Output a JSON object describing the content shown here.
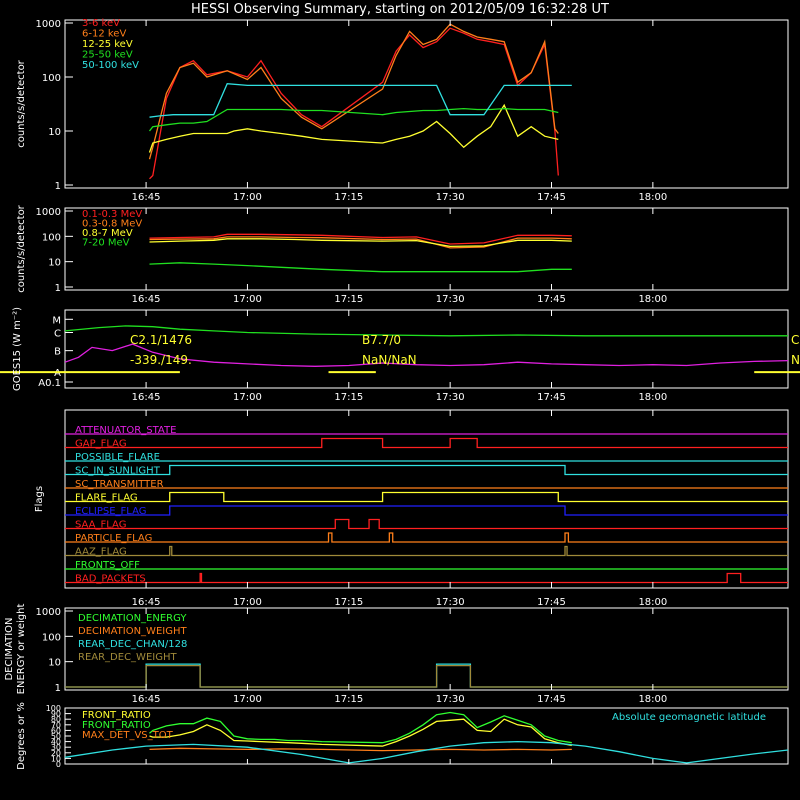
{
  "title": "HESSI Observing Summary, starting on 2012/05/09 16:32:28 UT",
  "time_ticks": [
    "16:45",
    "17:00",
    "17:15",
    "17:30",
    "17:45",
    "18:00"
  ],
  "time_tick_minutes": [
    45,
    60,
    75,
    90,
    105,
    120
  ],
  "time_range_minutes": [
    33,
    140
  ],
  "colors": {
    "red": "#ff2020",
    "orange": "#ff7f1a",
    "yellow": "#ffff30",
    "green": "#20e020",
    "cyan": "#30e0e0",
    "magenta": "#e020e0",
    "blue": "#2020ff",
    "white": "#ffffff",
    "olive": "#a08a3a",
    "lime": "#30ff30"
  },
  "chart_data": [
    {
      "type": "line",
      "panel": "count-rates",
      "ylabel": "counts/s/detector",
      "yscale": "log",
      "ylim": [
        1,
        1000
      ],
      "yticks": [
        "1",
        "10",
        "100",
        "1000"
      ],
      "legend": [
        "3-6 keV",
        "6-12 keV",
        "12-25 keV",
        "25-50 keV",
        "50-100 keV"
      ],
      "series": [
        {
          "name": "3-6 keV",
          "color": "red",
          "x": [
            45.5,
            46,
            48,
            50,
            52,
            54,
            57,
            60,
            62,
            65,
            68,
            71,
            80,
            82,
            84,
            86,
            88,
            90,
            92,
            94,
            96,
            98,
            100,
            102,
            104,
            105.5,
            106
          ],
          "y": [
            1.3,
            1.5,
            40,
            150,
            200,
            110,
            130,
            100,
            200,
            50,
            20,
            12,
            80,
            300,
            600,
            350,
            450,
            800,
            650,
            500,
            450,
            400,
            70,
            120,
            400,
            10,
            1.5
          ]
        },
        {
          "name": "6-12 keV",
          "color": "orange",
          "x": [
            45.5,
            46,
            48,
            50,
            52,
            54,
            57,
            60,
            62,
            65,
            68,
            71,
            80,
            82,
            84,
            86,
            88,
            90,
            92,
            94,
            96,
            98,
            100,
            102,
            104,
            105.5,
            106
          ],
          "y": [
            3,
            5,
            50,
            150,
            180,
            100,
            130,
            90,
            150,
            40,
            18,
            11,
            60,
            250,
            700,
            400,
            500,
            950,
            700,
            550,
            500,
            450,
            80,
            120,
            450,
            11,
            9
          ]
        },
        {
          "name": "12-25 keV",
          "color": "yellow",
          "x": [
            45.5,
            46,
            48,
            50,
            52,
            54,
            57,
            58,
            60,
            62,
            65,
            68,
            71,
            80,
            82,
            84,
            86,
            88,
            90,
            92,
            94,
            96,
            98,
            100,
            102,
            104,
            106
          ],
          "y": [
            4,
            6,
            7,
            8,
            9,
            9,
            9,
            10,
            11,
            10,
            9,
            8,
            7,
            6,
            7,
            8,
            10,
            15,
            9,
            5,
            8,
            12,
            30,
            8,
            12,
            8,
            7
          ]
        },
        {
          "name": "25-50 keV",
          "color": "green",
          "x": [
            45.5,
            46,
            48,
            50,
            52,
            54,
            57,
            60,
            65,
            68,
            71,
            80,
            82,
            84,
            86,
            88,
            90,
            92,
            94,
            96,
            98,
            100,
            102,
            104,
            106
          ],
          "y": [
            10,
            12,
            13,
            14,
            14,
            15,
            25,
            25,
            25,
            24,
            24,
            20,
            22,
            23,
            24,
            24,
            25,
            26,
            25,
            25,
            26,
            25,
            25,
            25,
            22
          ]
        },
        {
          "name": "50-100 keV",
          "color": "cyan",
          "x": [
            45.5,
            47,
            49,
            52,
            55,
            57,
            60,
            65,
            68,
            71,
            80,
            82,
            85,
            88,
            90,
            93,
            95,
            98,
            100,
            103,
            106,
            108
          ],
          "y": [
            18,
            19,
            20,
            20,
            20,
            75,
            70,
            70,
            70,
            70,
            70,
            70,
            70,
            70,
            20,
            20,
            20,
            70,
            70,
            70,
            70,
            70
          ]
        }
      ]
    },
    {
      "type": "line",
      "panel": "high-energy",
      "ylabel": "counts/s/detector",
      "yscale": "log",
      "ylim": [
        1,
        1000
      ],
      "yticks": [
        "1",
        "10",
        "100",
        "1000"
      ],
      "legend": [
        "0.1-0.3 MeV",
        "0.3-0.8 MeV",
        "0.8-7 MeV",
        "7-20 MeV"
      ],
      "series": [
        {
          "name": "0.1-0.3 MeV",
          "color": "red",
          "x": [
            45.5,
            50,
            55,
            57,
            62,
            67,
            71,
            80,
            85,
            90,
            95,
            100,
            105,
            108
          ],
          "y": [
            85,
            90,
            95,
            120,
            120,
            115,
            110,
            90,
            95,
            50,
            55,
            110,
            110,
            105
          ]
        },
        {
          "name": "0.3-0.8 MeV",
          "color": "orange",
          "x": [
            45.5,
            50,
            55,
            57,
            62,
            67,
            71,
            80,
            85,
            90,
            95,
            100,
            105,
            108
          ],
          "y": [
            75,
            78,
            80,
            95,
            95,
            90,
            88,
            75,
            78,
            35,
            38,
            85,
            85,
            80
          ]
        },
        {
          "name": "0.8-7 MeV",
          "color": "yellow",
          "x": [
            45.5,
            50,
            55,
            57,
            62,
            67,
            71,
            80,
            85,
            90,
            95,
            100,
            105,
            108
          ],
          "y": [
            60,
            65,
            70,
            80,
            80,
            75,
            70,
            65,
            68,
            40,
            42,
            70,
            70,
            65
          ]
        },
        {
          "name": "7-20 MeV",
          "color": "green",
          "x": [
            45.5,
            50,
            55,
            60,
            65,
            71,
            80,
            85,
            90,
            95,
            100,
            105,
            108
          ],
          "y": [
            8,
            9,
            8,
            7,
            6,
            5,
            4,
            4,
            4,
            4,
            4,
            5,
            5
          ]
        }
      ]
    },
    {
      "type": "line",
      "panel": "goes",
      "ylabel": "GOES15 (W m⁻²)",
      "yticks": [
        "A0.1",
        "A",
        "B",
        "C",
        "M"
      ],
      "annotations": [
        "C2.1/1476",
        "-339./149.",
        "B7.7/0",
        "NaN/NaN",
        "C",
        "N"
      ],
      "series": [
        {
          "name": "long",
          "color": "green",
          "x": [
            33,
            38,
            42,
            46,
            50,
            55,
            60,
            70,
            80,
            90,
            100,
            110,
            120,
            130,
            140
          ],
          "y": [
            3.1,
            3.3,
            3.4,
            3.35,
            3.2,
            3.1,
            3.0,
            2.9,
            2.85,
            2.8,
            2.85,
            2.8,
            2.8,
            2.8,
            2.8
          ]
        },
        {
          "name": "short",
          "color": "magenta",
          "x": [
            33,
            35,
            37,
            40,
            43,
            46,
            50,
            55,
            60,
            65,
            70,
            75,
            80,
            85,
            90,
            95,
            100,
            105,
            110,
            115,
            120,
            125,
            130,
            135,
            140
          ],
          "y": [
            1.2,
            1.5,
            2.1,
            1.9,
            2.3,
            1.8,
            1.4,
            1.2,
            1.1,
            1.0,
            0.95,
            1.0,
            1.15,
            1.05,
            1.0,
            1.05,
            1.2,
            1.1,
            1.05,
            1.0,
            1.05,
            1.0,
            1.15,
            1.25,
            1.3
          ]
        }
      ]
    },
    {
      "type": "line",
      "panel": "flags",
      "ylabel": "Flags",
      "labels": [
        "ATTENUATOR_STATE",
        "GAP_FLAG",
        "POSSIBLE_FLARE",
        "SC_IN_SUNLIGHT",
        "SC_TRANSMITTER",
        "FLARE_FLAG",
        "ECLIPSE_FLAG",
        "SAA_FLAG",
        "PARTICLE_FLAG",
        "AAZ_FLAG",
        "FRONTS_OFF",
        "BAD_PACKETS"
      ],
      "colors": [
        "magenta",
        "red",
        "cyan",
        "cyan",
        "orange",
        "yellow",
        "blue",
        "red",
        "orange",
        "olive",
        "lime",
        "red"
      ],
      "transitions": [
        [],
        [
          71,
          80,
          90,
          94
        ],
        [],
        [
          48.5,
          107
        ],
        [],
        [
          48.5,
          56.5,
          80,
          106
        ],
        [
          48.5,
          107
        ],
        [
          73,
          75,
          78,
          79.5
        ],
        [
          72,
          72.5,
          81,
          81.5,
          107,
          107.5
        ],
        [
          48.5,
          48.8,
          107,
          107.3
        ],
        [],
        [
          53,
          53.2,
          131,
          133
        ]
      ]
    },
    {
      "type": "line",
      "panel": "decimation",
      "ylabel": "DECIMATION ENERGY or weight",
      "yscale": "log",
      "ylim": [
        1,
        1000
      ],
      "yticks": [
        "1",
        "10",
        "100",
        "1000"
      ],
      "legend": [
        "DECIMATION_ENERGY",
        "DECIMATION_WEIGHT",
        "REAR_DEC_CHAN/128",
        "REAR_DEC_WEIGHT"
      ],
      "series": [
        {
          "name": "REAR_DEC_CHAN/128",
          "color": "cyan",
          "x": [
            33,
            45,
            45,
            53,
            53,
            88,
            88,
            93,
            93,
            140
          ],
          "y": [
            1,
            1,
            8,
            8,
            1,
            1,
            8,
            8,
            1,
            1
          ]
        },
        {
          "name": "REAR_DEC_WEIGHT",
          "color": "olive",
          "x": [
            33,
            45,
            45,
            53,
            53,
            88,
            88,
            93,
            93,
            140
          ],
          "y": [
            1,
            1,
            7,
            7,
            1,
            1,
            7,
            7,
            1,
            1
          ]
        }
      ]
    },
    {
      "type": "line",
      "panel": "ratios",
      "ylabel": "Degrees or %",
      "ylim": [
        0,
        100
      ],
      "yticks": [
        "0",
        "10",
        "20",
        "30",
        "40",
        "50",
        "60",
        "70",
        "80",
        "90",
        "100"
      ],
      "legend": [
        "FRONT_RATIO",
        "FRONT_RATIO",
        "MAX_DET_VS_TOT"
      ],
      "annotation": "Absolute geomagnetic latitude",
      "series": [
        {
          "name": "FRONT_RATIO",
          "color": "yellow",
          "x": [
            45.5,
            46,
            48,
            50,
            52,
            54,
            56,
            58,
            60,
            62,
            64,
            66,
            68,
            71,
            80,
            82,
            84,
            86,
            88,
            90,
            92,
            94,
            96,
            98,
            100,
            102,
            104,
            106,
            108
          ],
          "y": [
            50,
            48,
            48,
            52,
            58,
            70,
            60,
            42,
            41,
            40,
            39,
            38,
            37,
            35,
            32,
            40,
            50,
            62,
            76,
            78,
            80,
            60,
            58,
            80,
            70,
            66,
            45,
            38,
            33
          ]
        },
        {
          "name": "FRONT_RATIO",
          "color": "lime",
          "x": [
            45.5,
            46,
            48,
            50,
            52,
            54,
            56,
            58,
            60,
            62,
            64,
            66,
            68,
            71,
            80,
            82,
            84,
            86,
            88,
            90,
            92,
            94,
            96,
            98,
            100,
            102,
            104,
            106,
            108
          ],
          "y": [
            55,
            60,
            68,
            72,
            72,
            82,
            76,
            50,
            45,
            44,
            44,
            42,
            42,
            40,
            38,
            44,
            55,
            70,
            88,
            92,
            88,
            65,
            75,
            86,
            78,
            70,
            50,
            42,
            38
          ]
        },
        {
          "name": "MAX_DET_VS_TOT",
          "color": "orange",
          "x": [
            45.5,
            50,
            55,
            60,
            65,
            71,
            80,
            85,
            90,
            95,
            100,
            105,
            108
          ],
          "y": [
            26,
            28,
            27,
            26,
            27,
            26,
            24,
            25,
            26,
            25,
            26,
            25,
            26
          ]
        },
        {
          "name": "geomag",
          "color": "cyan",
          "x": [
            33,
            40,
            45,
            52,
            60,
            68,
            75,
            80,
            85,
            90,
            95,
            100,
            105,
            110,
            115,
            120,
            125,
            130,
            135,
            140
          ],
          "y": [
            12,
            25,
            32,
            35,
            30,
            17,
            2,
            10,
            22,
            32,
            38,
            40,
            38,
            32,
            22,
            10,
            2,
            10,
            18,
            25
          ]
        }
      ]
    }
  ]
}
